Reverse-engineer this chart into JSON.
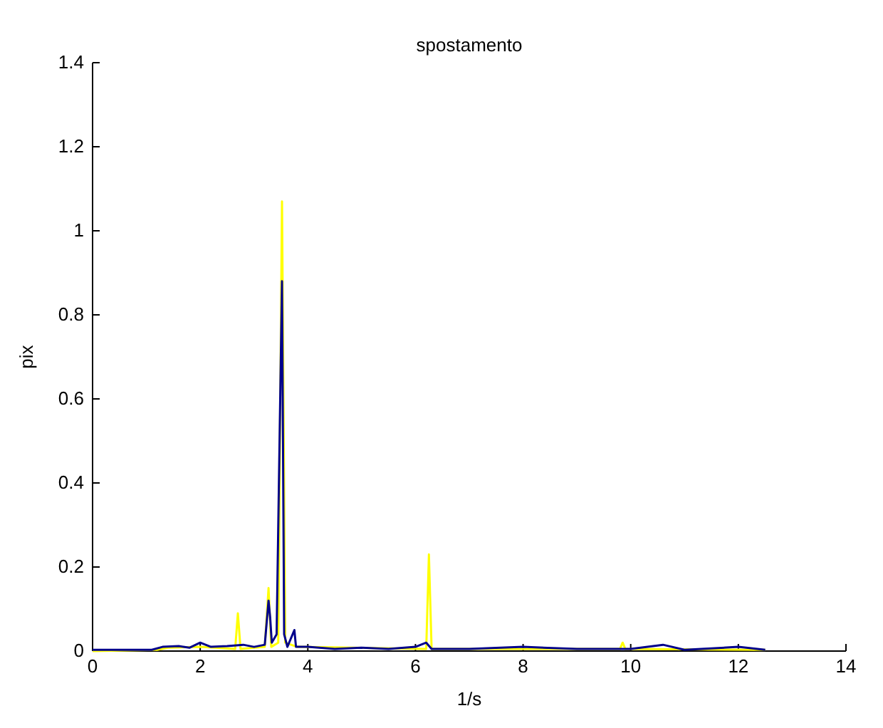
{
  "chart_data": {
    "type": "line",
    "title": "spostamento",
    "xlabel": "1/s",
    "ylabel": "pix",
    "xlim": [
      0,
      14
    ],
    "ylim": [
      0,
      1.4
    ],
    "xticks": [
      0,
      2,
      4,
      6,
      8,
      10,
      12,
      14
    ],
    "yticks": [
      0,
      0.2,
      0.4,
      0.6,
      0.8,
      1,
      1.2,
      1.4
    ],
    "grid": false,
    "legend": false,
    "series": [
      {
        "color": "#ffff00",
        "x": [
          0,
          1.2,
          1.4,
          2,
          2.65,
          2.7,
          2.75,
          3.2,
          3.27,
          3.32,
          3.45,
          3.52,
          3.58,
          3.8,
          6.2,
          6.25,
          6.3,
          8,
          9.8,
          9.85,
          9.9,
          12.5
        ],
        "values": [
          0,
          0.003,
          0.008,
          0.01,
          0.005,
          0.09,
          0.005,
          0.01,
          0.15,
          0.01,
          0.02,
          1.07,
          0.02,
          0.01,
          0.005,
          0.23,
          0.005,
          0.005,
          0.005,
          0.02,
          0.005,
          0.003
        ]
      },
      {
        "color": "#00008b",
        "x": [
          0,
          1.1,
          1.3,
          1.6,
          1.8,
          2,
          2.2,
          2.5,
          2.8,
          3,
          3.2,
          3.27,
          3.3,
          3.33,
          3.42,
          3.52,
          3.56,
          3.62,
          3.75,
          3.78,
          4,
          4.5,
          5,
          5.5,
          6,
          6.2,
          6.3,
          7,
          8,
          9,
          10,
          10.6,
          11,
          12,
          12.5
        ],
        "values": [
          0.003,
          0.003,
          0.01,
          0.012,
          0.008,
          0.02,
          0.01,
          0.012,
          0.015,
          0.01,
          0.015,
          0.12,
          0.08,
          0.02,
          0.04,
          0.88,
          0.04,
          0.01,
          0.05,
          0.01,
          0.01,
          0.005,
          0.008,
          0.005,
          0.01,
          0.02,
          0.005,
          0.005,
          0.01,
          0.005,
          0.005,
          0.015,
          0.003,
          0.01,
          0.003
        ]
      }
    ]
  }
}
